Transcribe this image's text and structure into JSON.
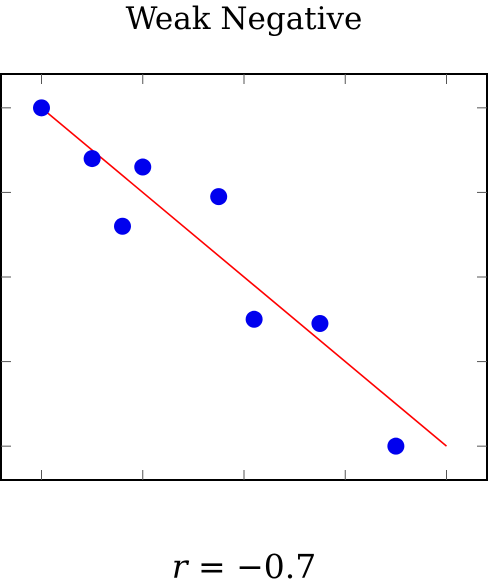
{
  "chart_data": {
    "type": "scatter",
    "title": "Weak Negative",
    "caption": {
      "variable": "r",
      "relation": " = −0.7"
    },
    "xlabel": "",
    "ylabel": "",
    "xlim": [
      -0.4,
      4.4
    ],
    "ylim": [
      -0.4,
      4.4
    ],
    "xticks": [
      0,
      1,
      2,
      3,
      4
    ],
    "yticks": [
      0,
      1,
      2,
      3,
      4
    ],
    "tick_labels_shown": false,
    "grid": false,
    "legend": "none",
    "points": [
      {
        "x": 0.0,
        "y": 4.0
      },
      {
        "x": 0.5,
        "y": 3.4
      },
      {
        "x": 0.8,
        "y": 2.6
      },
      {
        "x": 1.0,
        "y": 3.3
      },
      {
        "x": 1.75,
        "y": 2.95
      },
      {
        "x": 2.1,
        "y": 1.5
      },
      {
        "x": 2.75,
        "y": 1.45
      },
      {
        "x": 3.5,
        "y": 0.0
      }
    ],
    "trendline": {
      "from": {
        "x": 0.0,
        "y": 4.0
      },
      "to": {
        "x": 4.0,
        "y": 0.0
      }
    },
    "colors": {
      "points": "#0000ee",
      "trendline": "#ff0000",
      "axes": "#000000"
    }
  }
}
